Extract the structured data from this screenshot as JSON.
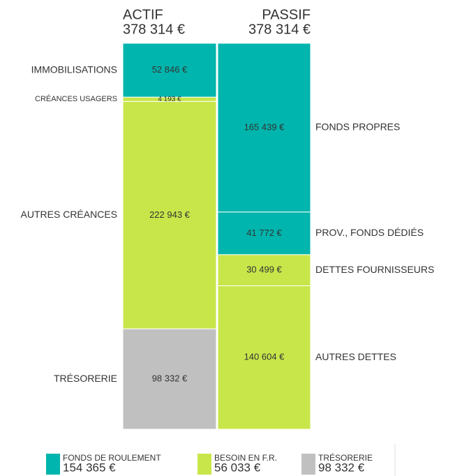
{
  "chart_data": {
    "type": "balance",
    "columns": [
      {
        "title": "ACTIF",
        "total": 378314,
        "total_label": "378 314 €",
        "label_side": "left",
        "segments": [
          {
            "name": "IMMOBILISATIONS",
            "value": 52846,
            "value_label": "52 846 €",
            "color": "#00b5ad"
          },
          {
            "name": "CRÉANCES USAGERS",
            "value": 4193,
            "value_label": "4 193 €",
            "color": "#c8e64a"
          },
          {
            "name": "AUTRES CRÉANCES",
            "value": 222943,
            "value_label": "222 943 €",
            "color": "#c8e64a"
          },
          {
            "name": "TRÉSORERIE",
            "value": 98332,
            "value_label": "98 332 €",
            "color": "#c0c0c0"
          }
        ]
      },
      {
        "title": "PASSIF",
        "total": 378314,
        "total_label": "378 314 €",
        "label_side": "right",
        "segments": [
          {
            "name": "FONDS PROPRES",
            "value": 165439,
            "value_label": "165 439 €",
            "color": "#00b5ad"
          },
          {
            "name": "PROV., FONDS DÉDIÉS",
            "value": 41772,
            "value_label": "41 772 €",
            "color": "#00b5ad"
          },
          {
            "name": "DETTES FOURNISSEURS",
            "value": 30499,
            "value_label": "30 499 €",
            "color": "#c8e64a"
          },
          {
            "name": "AUTRES DETTES",
            "value": 140604,
            "value_label": "140 604 €",
            "color": "#c8e64a"
          }
        ]
      }
    ],
    "legend": [
      {
        "name": "FONDS DE ROULEMENT",
        "value": 154365,
        "value_label": "154 365 €",
        "color": "#00b5ad"
      },
      {
        "name": "BESOIN EN F.R.",
        "value": 56033,
        "value_label": "56 033 €",
        "color": "#c8e64a"
      },
      {
        "name": "TRÉSORERIE",
        "value": 98332,
        "value_label": "98 332 €",
        "color": "#c0c0c0"
      }
    ]
  }
}
